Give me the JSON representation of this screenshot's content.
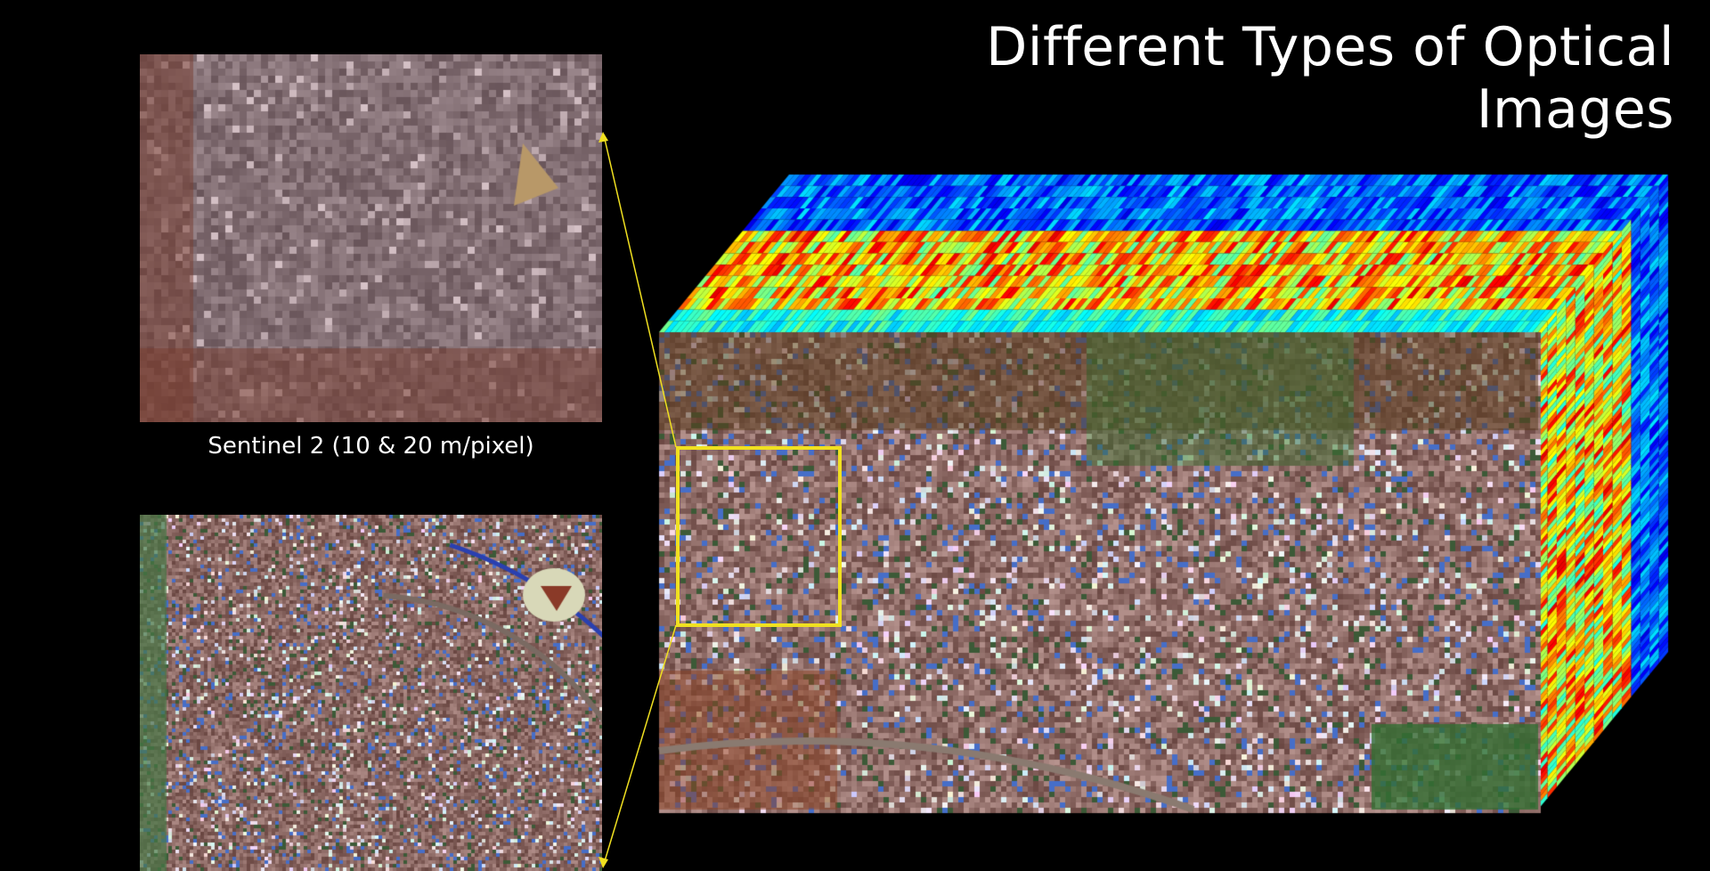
{
  "slide": {
    "title": "Different Types of Optical Images",
    "sentinel_caption": "Sentinel 2 (10 & 20 m/pixel)"
  },
  "images": {
    "top_left": "Sentinel 2 low-resolution satellite image",
    "bottom_left": "high-resolution satellite image",
    "cube": "hyperspectral data cube"
  },
  "colors": {
    "highlight": "#f0e020",
    "background": "#000000"
  }
}
